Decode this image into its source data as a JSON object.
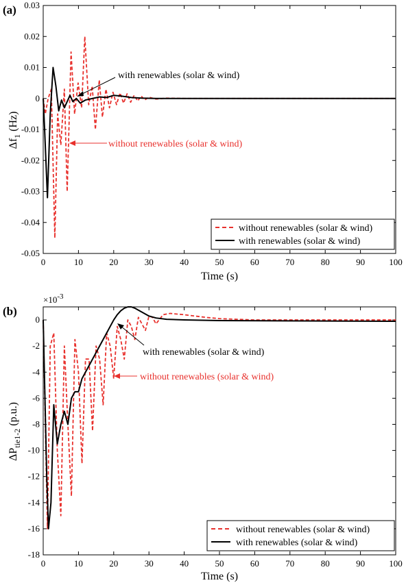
{
  "chart_data": [
    {
      "type": "line",
      "panel_label": "(a)",
      "xlabel": "Time (s)",
      "ylabel": "Δf",
      "ylabel_sub": "1",
      "ylabel_unit": " (Hz)",
      "xlim": [
        0,
        100
      ],
      "ylim": [
        -0.05,
        0.03
      ],
      "xticks": [
        "0",
        "10",
        "20",
        "30",
        "40",
        "50",
        "60",
        "70",
        "80",
        "90",
        "100"
      ],
      "yticks": [
        "0.03",
        "0.02",
        "0.01",
        "0",
        "-0.01",
        "-0.02",
        "-0.03",
        "-0.04",
        "-0.05"
      ],
      "legend": "bottom-right",
      "legend_entries": [
        "without renewables (solar & wind)",
        "with renewables (solar & wind)"
      ],
      "annotations": [
        {
          "text": "with renewables (solar & wind)",
          "color": "#000000"
        },
        {
          "text": "without renewables (solar & wind)",
          "color": "#e8302c"
        }
      ],
      "series": [
        {
          "color": "#e8302c",
          "style": "dashed",
          "x": [
            0,
            0.6,
            1.4,
            2.3,
            3.3,
            4.1,
            5.0,
            6.0,
            6.8,
            7.9,
            8.9,
            9.9,
            10.9,
            11.8,
            12.9,
            13.9,
            14.8,
            15.9,
            16.8,
            17.8,
            18.8,
            19.8,
            20.8,
            21.8,
            22.8,
            23.8,
            24.8,
            25.8,
            26.8,
            27.8,
            28.8,
            30,
            32,
            35,
            40,
            50,
            60,
            100
          ],
          "y": [
            0,
            -0.005,
            0.0,
            0.003,
            -0.045,
            -0.005,
            -0.015,
            0.003,
            -0.03,
            0.015,
            -0.005,
            0.005,
            -0.003,
            0.02,
            -0.002,
            0.004,
            -0.01,
            0.006,
            -0.006,
            0.003,
            -0.003,
            0.002,
            -0.002,
            0.0018,
            -0.0015,
            0.0015,
            -0.0012,
            0.001,
            -0.0008,
            0.0008,
            -0.0005,
            0.0004,
            -0.0002,
            0.0001,
            0.0,
            0.0,
            0.0,
            0.0
          ]
        },
        {
          "color": "#000000",
          "style": "solid",
          "x": [
            0,
            0.4,
            1.2,
            2.0,
            2.8,
            3.6,
            4.4,
            5.2,
            6.0,
            6.8,
            7.6,
            8.4,
            9.4,
            10.5,
            12,
            14,
            16,
            18,
            20,
            22,
            25,
            28,
            32,
            40,
            50,
            100
          ],
          "y": [
            0,
            -0.01,
            -0.032,
            -0.005,
            0.01,
            0.004,
            -0.004,
            -0.0005,
            -0.003,
            -0.001,
            0.001,
            -0.001,
            0.0,
            -0.0015,
            -0.0005,
            0.0,
            0.0005,
            0.0003,
            0.001,
            0.0008,
            0.0003,
            0.0001,
            0.0,
            0.0,
            0.0,
            0.0
          ]
        }
      ]
    },
    {
      "type": "line",
      "panel_label": "(b)",
      "xlabel": "Time (s)",
      "ylabel": "ΔP",
      "ylabel_sub": "tie1-2",
      "ylabel_unit": " (p.u.)",
      "multiplier": "×10",
      "multiplier_exp": "-3",
      "xlim": [
        0,
        100
      ],
      "ylim": [
        -18,
        1
      ],
      "xticks": [
        "0",
        "10",
        "20",
        "30",
        "40",
        "50",
        "60",
        "70",
        "80",
        "90",
        "100"
      ],
      "yticks": [
        "0",
        "-2",
        "-4",
        "-6",
        "-8",
        "-10",
        "-12",
        "-14",
        "-16",
        "-18"
      ],
      "legend": "bottom-right",
      "legend_entries": [
        "without renewables (solar & wind)",
        "with renewables (solar & wind)"
      ],
      "annotations": [
        {
          "text": "with renewables (solar & wind)",
          "color": "#000000"
        },
        {
          "text": "without renewables (solar & wind)",
          "color": "#e8302c"
        }
      ],
      "series": [
        {
          "color": "#e8302c",
          "style": "dashed",
          "x": [
            0,
            1.2,
            2.0,
            3.0,
            4.0,
            5.0,
            6.0,
            7.0,
            8.0,
            9.0,
            10.0,
            11.0,
            12.0,
            13.0,
            14.0,
            15.0,
            16.0,
            17.0,
            18.0,
            19.0,
            20.0,
            21.0,
            22.0,
            23.0,
            24.0,
            25.0,
            26.0,
            27.0,
            28.0,
            29.0,
            30.0,
            31.0,
            32.0,
            34.0,
            36.0,
            38.0,
            40.0,
            43.0,
            46.0,
            50.0,
            55.0,
            60.0,
            70.0,
            100.0
          ],
          "y": [
            0,
            -16.0,
            -2.0,
            -1.0,
            -10.0,
            -15.0,
            -2.0,
            -8.0,
            -13.5,
            -1.5,
            -4.0,
            -11.0,
            -3.0,
            -3.0,
            -8.5,
            -2.0,
            -3.0,
            -6.5,
            -1.0,
            -2.0,
            -4.5,
            -0.5,
            -1.5,
            -3.0,
            0.0,
            -0.5,
            -1.5,
            0.2,
            -0.3,
            -0.8,
            0.3,
            0.2,
            -0.3,
            0.4,
            0.5,
            0.45,
            0.4,
            0.3,
            0.2,
            0.1,
            0.05,
            0.0,
            0.0,
            0.0
          ]
        },
        {
          "color": "#000000",
          "style": "solid",
          "x": [
            0,
            0.5,
            1.0,
            1.5,
            2.2,
            3.0,
            4.0,
            5.0,
            6.0,
            7.0,
            8.0,
            9.0,
            10.0,
            11.0,
            12.0,
            13.0,
            14.0,
            15.0,
            16.0,
            17.0,
            18.0,
            19.0,
            20.0,
            21.0,
            22.0,
            23.0,
            24.0,
            25.0,
            26.0,
            28.0,
            30.0,
            32.0,
            35.0,
            40.0,
            50.0,
            100.0
          ],
          "y": [
            0,
            -6.0,
            -12.0,
            -16.0,
            -14.0,
            -6.5,
            -9.5,
            -8.0,
            -7.0,
            -8.0,
            -6.0,
            -5.5,
            -5.5,
            -4.5,
            -4.0,
            -3.5,
            -3.0,
            -2.5,
            -2.0,
            -1.5,
            -1.0,
            -0.5,
            0.0,
            0.4,
            0.7,
            0.9,
            1.0,
            1.0,
            0.9,
            0.6,
            0.3,
            0.15,
            0.05,
            0.0,
            -0.05,
            -0.1
          ]
        }
      ]
    }
  ]
}
